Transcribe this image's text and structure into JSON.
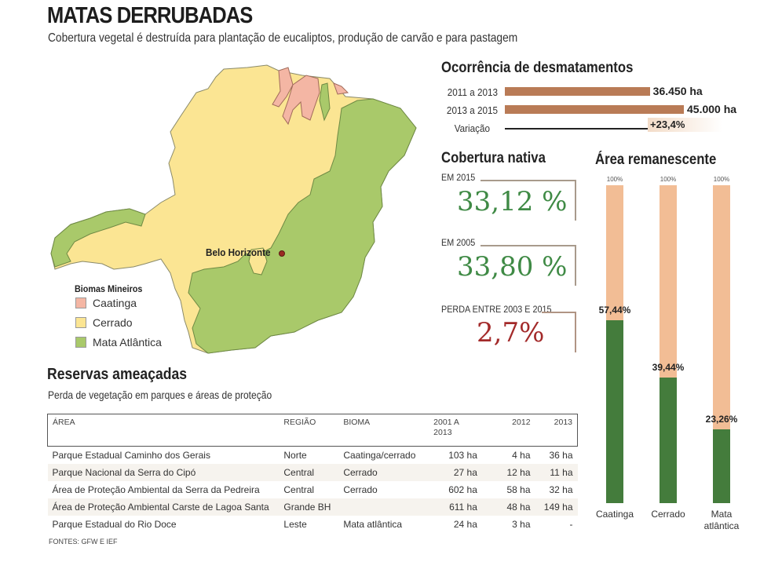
{
  "header": {
    "title": "MATAS DERRUBADAS",
    "subtitle": "Cobertura vegetal é destruída para plantação de eucaliptos, produção de carvão e para pastagem"
  },
  "map": {
    "city": "Belo Horizonte",
    "legend_title": "Biomas Mineiros",
    "legend": [
      {
        "label": "Caatinga",
        "color": "#f4b6a4"
      },
      {
        "label": "Cerrado",
        "color": "#fbe593"
      },
      {
        "label": "Mata Atlântica",
        "color": "#a9c96a"
      }
    ]
  },
  "chart_data": [
    {
      "type": "bar",
      "orientation": "horizontal",
      "title": "Ocorrência de desmatamentos",
      "categories": [
        "2011 a 2013",
        "2013 a 2015"
      ],
      "values": [
        36450,
        45000
      ],
      "value_labels": [
        "36.450 ha",
        "45.000 ha"
      ],
      "unit": "ha",
      "variation_label": "Variação",
      "variation_value": "+23,4%",
      "color": "#b97b56"
    },
    {
      "type": "table",
      "title": "Cobertura nativa",
      "stats": [
        {
          "label": "EM 2015",
          "value": "33,12 %"
        },
        {
          "label": "EM 2005",
          "value": "33,80 %"
        },
        {
          "label": "PERDA ENTRE 2003 E 2015",
          "value": "2,7%"
        }
      ]
    },
    {
      "type": "bar",
      "orientation": "vertical",
      "title": "Área remanescente",
      "categories": [
        "Caatinga",
        "Cerrado",
        "Mata atlântica"
      ],
      "total_label": "100%",
      "values": [
        57.44,
        39.44,
        23.26
      ],
      "value_labels": [
        "57,44%",
        "39,44%",
        "23,26%"
      ],
      "ylim": [
        0,
        100
      ],
      "colors": {
        "remaining": "#447c3c",
        "total": "#f2bd95"
      }
    },
    {
      "type": "table",
      "title": "Reservas ameaçadas",
      "subtitle": "Perda de vegetação em parques e áreas de proteção",
      "columns": [
        "ÁREA",
        "REGIÃO",
        "BIOMA",
        "2001 A 2013",
        "2012",
        "2013"
      ],
      "rows": [
        [
          "Parque Estadual Caminho dos Gerais",
          "Norte",
          "Caatinga/cerrado",
          "103 ha",
          "4 ha",
          "36 ha"
        ],
        [
          "Parque Nacional da Serra do Cipó",
          "Central",
          "Cerrado",
          "27 ha",
          "12 ha",
          "11 ha"
        ],
        [
          "Área de Proteção Ambiental da Serra da Pedreira",
          "Central",
          "Cerrado",
          "602 ha",
          "58 ha",
          "32 ha"
        ],
        [
          "Área de Proteção Ambiental Carste de Lagoa Santa",
          "Grande BH",
          "",
          "611 ha",
          "48 ha",
          "149 ha"
        ],
        [
          "Parque Estadual  do Rio Doce",
          "Leste",
          "Mata atlântica",
          "24 ha",
          "3 ha",
          "-"
        ]
      ],
      "sources": "FONTES: GFW E IEF"
    }
  ]
}
